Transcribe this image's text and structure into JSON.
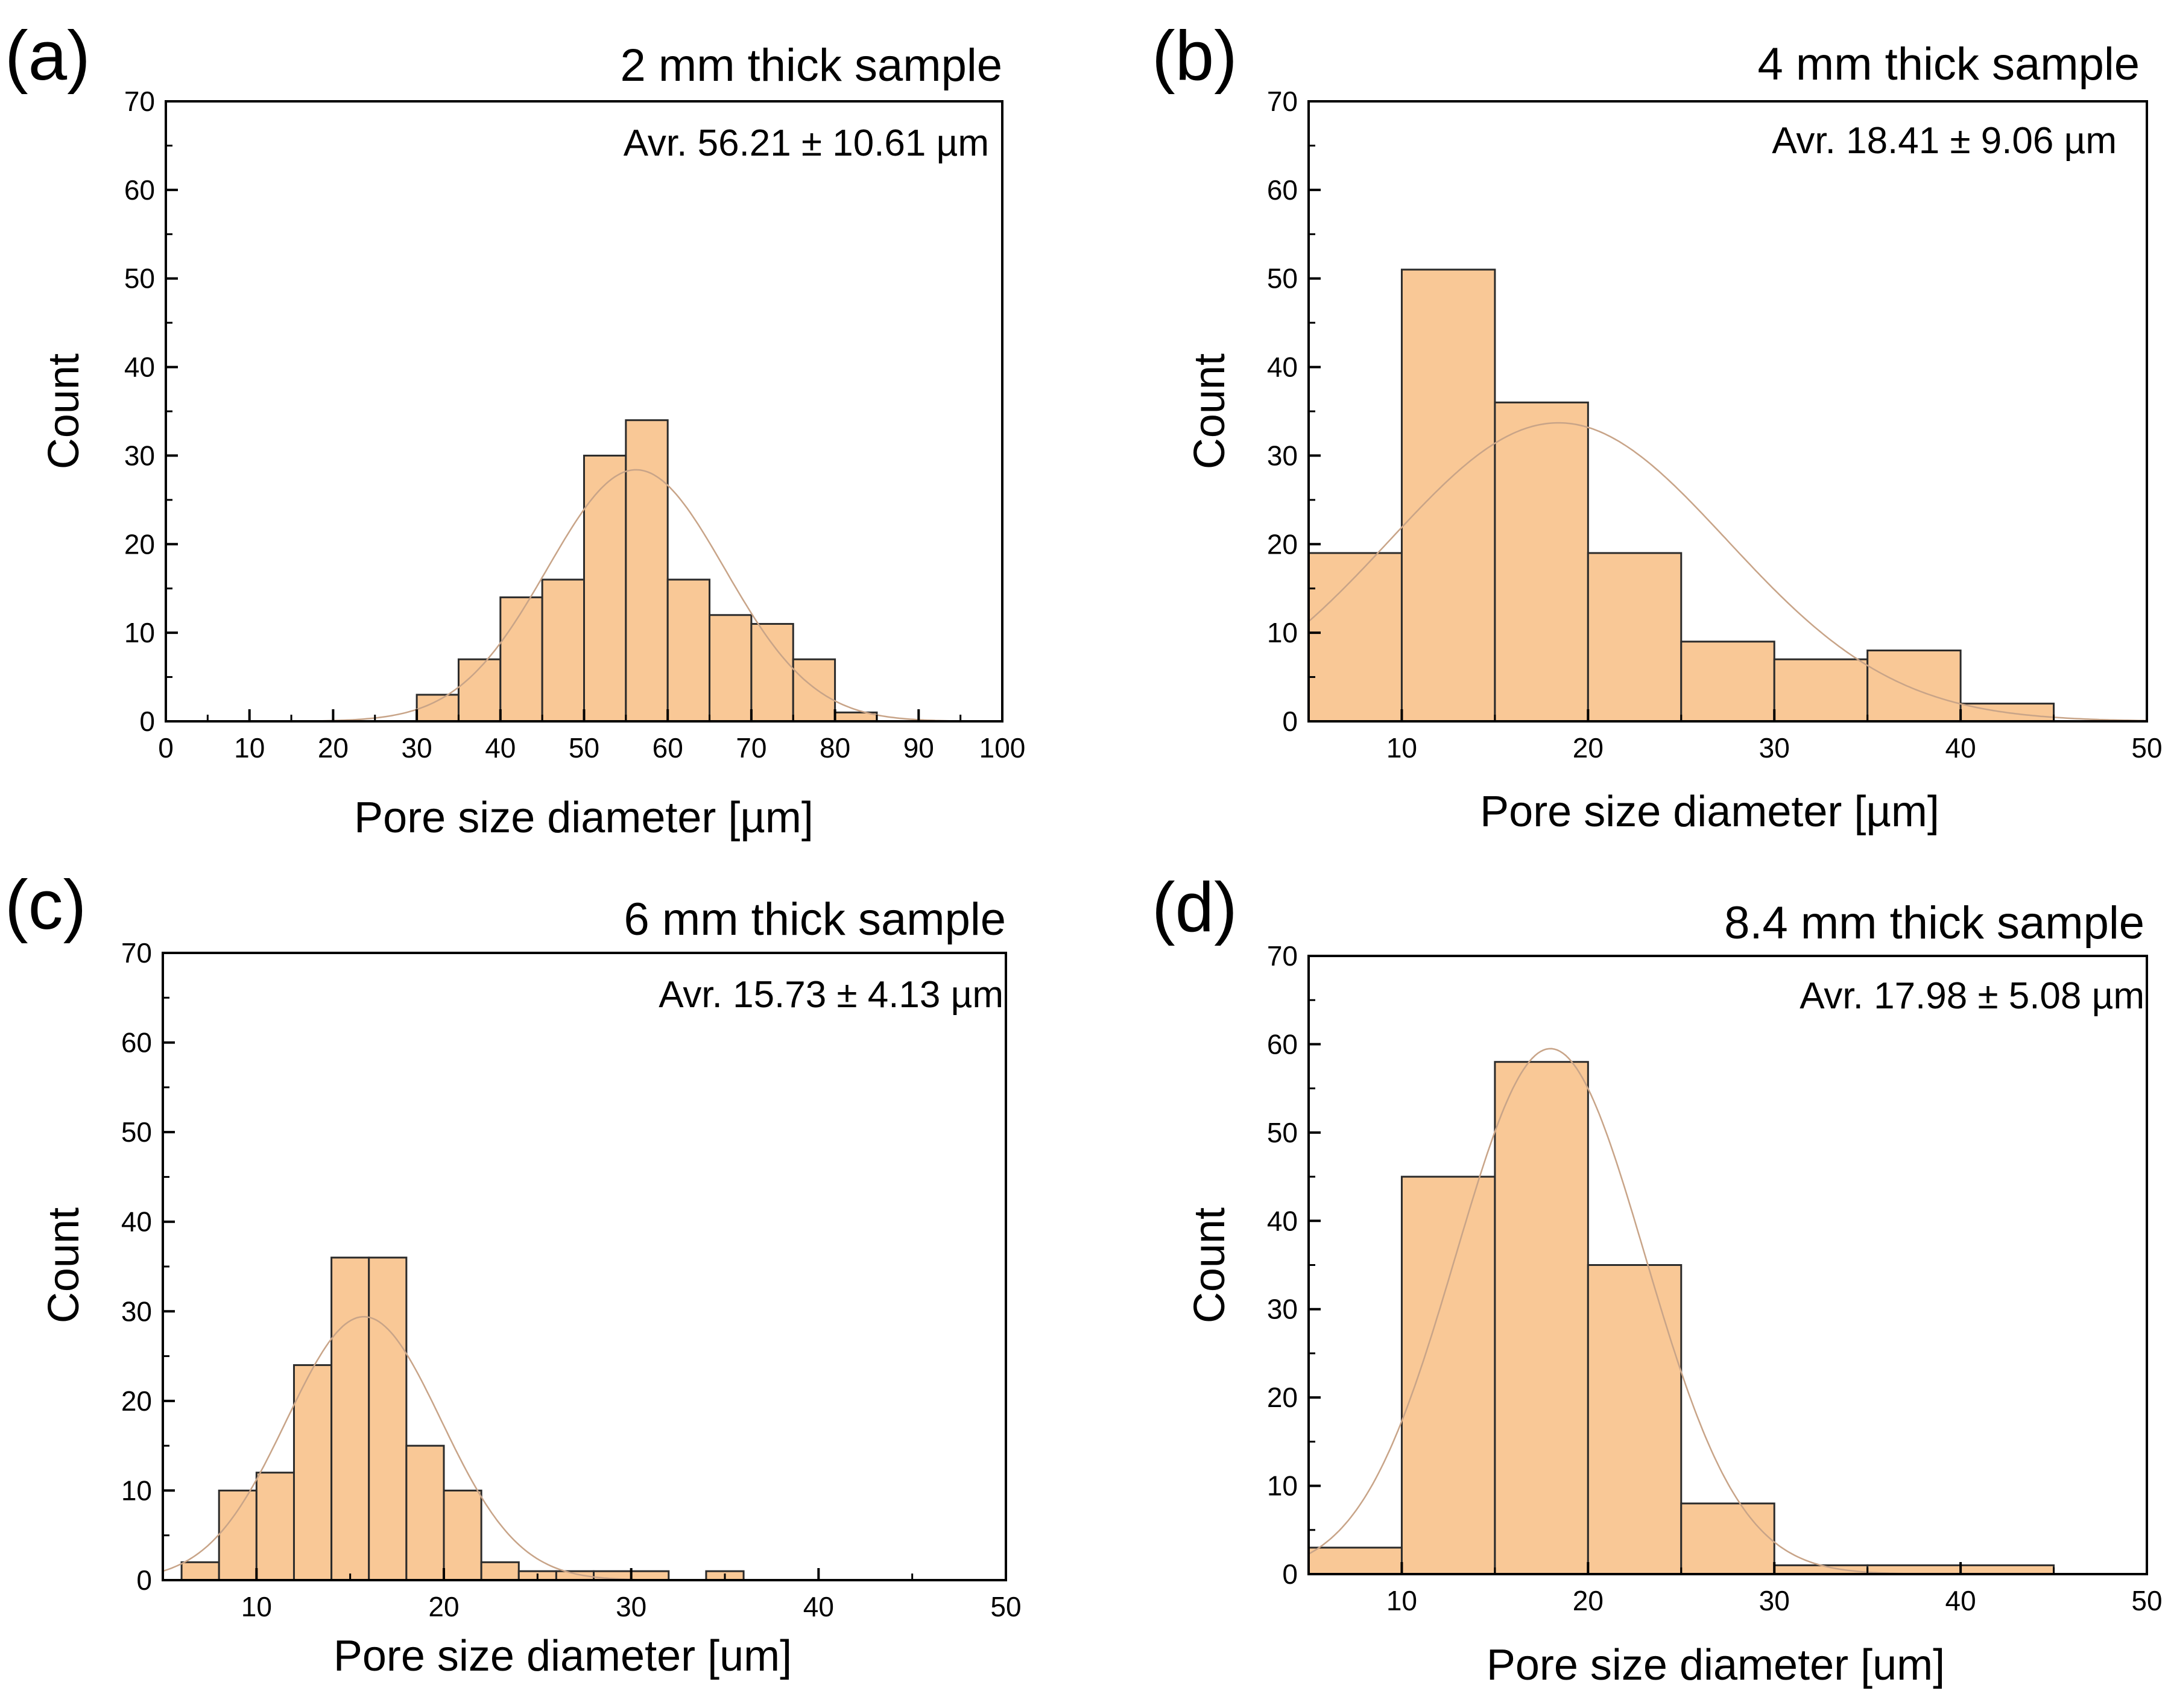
{
  "colors": {
    "bar_fill": "#F9C896",
    "bar_stroke": "#2b2b2b",
    "fit_curve": "#C8A488",
    "axis": "#000000"
  },
  "chart_data": [
    {
      "panel": "(a)",
      "type": "bar",
      "title": "2 mm thick sample",
      "annotation": "Avr. 56.21 ± 10.61 µm",
      "xlabel": "Pore size diameter [µm]",
      "ylabel": "Count",
      "xlim": [
        0,
        100
      ],
      "ylim": [
        0,
        70
      ],
      "xticks": [
        0,
        10,
        20,
        30,
        40,
        50,
        60,
        70,
        80,
        90,
        100
      ],
      "yticks": [
        0,
        10,
        20,
        30,
        40,
        50,
        60,
        70
      ],
      "bin_width": 5,
      "bin_starts": [
        30,
        35,
        40,
        45,
        50,
        55,
        60,
        65,
        70,
        75,
        80
      ],
      "values": [
        3,
        7,
        14,
        16,
        30,
        34,
        16,
        12,
        11,
        7,
        1
      ],
      "fit": {
        "type": "normal",
        "mean": 56.21,
        "sd": 10.61,
        "peak": 28.4
      }
    },
    {
      "panel": "(b)",
      "type": "bar",
      "title": "4 mm thick sample",
      "annotation": "Avr. 18.41 ± 9.06 µm",
      "xlabel": "Pore size diameter [µm]",
      "ylabel": "Count",
      "xlim": [
        5,
        50
      ],
      "ylim": [
        0,
        70
      ],
      "xticks": [
        10,
        20,
        30,
        40,
        50
      ],
      "yticks": [
        0,
        10,
        20,
        30,
        40,
        50,
        60,
        70
      ],
      "bin_width": 5,
      "bin_starts": [
        5,
        10,
        15,
        20,
        25,
        30,
        35,
        40
      ],
      "values": [
        19,
        51,
        36,
        19,
        9,
        7,
        8,
        2
      ],
      "fit": {
        "type": "normal",
        "mean": 18.41,
        "sd": 9.06,
        "peak": 33.7
      }
    },
    {
      "panel": "(c)",
      "type": "bar",
      "title": "6 mm thick sample",
      "annotation": "Avr. 15.73 ± 4.13 µm",
      "xlabel": "Pore size diameter [um]",
      "ylabel": "Count",
      "xlim": [
        5,
        50
      ],
      "ylim": [
        0,
        70
      ],
      "xticks": [
        10,
        20,
        30,
        40,
        50
      ],
      "yticks": [
        0,
        10,
        20,
        30,
        40,
        50,
        60,
        70
      ],
      "bin_width": 2,
      "bin_starts": [
        6,
        8,
        10,
        12,
        14,
        16,
        18,
        20,
        22,
        24,
        26,
        28,
        30,
        34
      ],
      "values": [
        2,
        10,
        12,
        24,
        36,
        36,
        15,
        10,
        2,
        1,
        1,
        1,
        1,
        1
      ],
      "fit": {
        "type": "normal",
        "mean": 15.73,
        "sd": 4.13,
        "peak": 29.4
      }
    },
    {
      "panel": "(d)",
      "type": "bar",
      "title": "8.4 mm thick sample",
      "annotation": "Avr. 17.98 ± 5.08 µm",
      "xlabel": "Pore size diameter [um]",
      "ylabel": "Count",
      "xlim": [
        5,
        50
      ],
      "ylim": [
        0,
        70
      ],
      "xticks": [
        10,
        20,
        30,
        40,
        50
      ],
      "yticks": [
        0,
        10,
        20,
        30,
        40,
        50,
        60,
        70
      ],
      "bin_width": 5,
      "bin_starts": [
        5,
        10,
        15,
        20,
        25,
        30,
        35,
        40
      ],
      "values": [
        3,
        45,
        58,
        35,
        8,
        1,
        1,
        1
      ],
      "fit": {
        "type": "normal",
        "mean": 17.98,
        "sd": 5.08,
        "peak": 59.5
      }
    }
  ]
}
